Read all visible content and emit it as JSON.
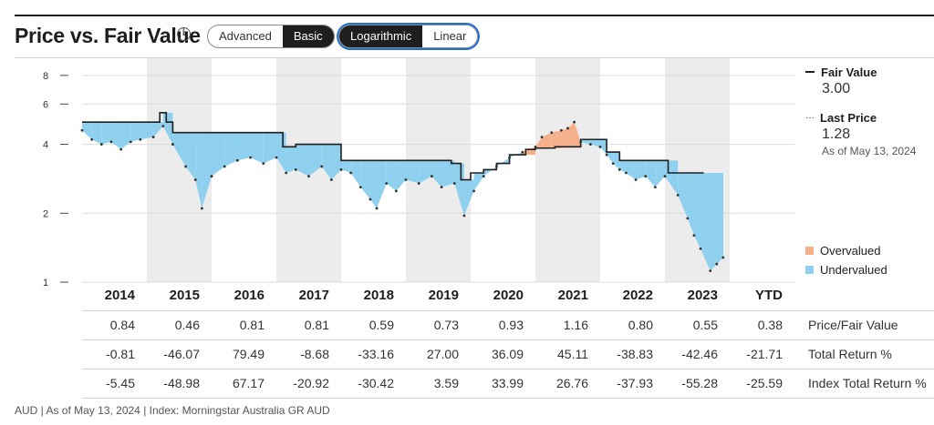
{
  "header": {
    "title": "Price vs. Fair Value",
    "mode_options": [
      "Advanced",
      "Basic"
    ],
    "mode_selected": "Basic",
    "scale_options": [
      "Logarithmic",
      "Linear"
    ],
    "scale_selected": "Logarithmic"
  },
  "legend": {
    "fair_value_label": "Fair Value",
    "fair_value": "3.00",
    "last_price_label": "Last Price",
    "last_price": "1.28",
    "as_of": "As of May 13, 2024",
    "overvalued": "Overvalued",
    "undervalued": "Undervalued",
    "colors": {
      "overvalued": "#f4b08a",
      "undervalued": "#8fd0ee",
      "fair_value_line": "#1e1e1e",
      "price_dots": "#333333"
    }
  },
  "chart_data": {
    "type": "area",
    "scale": "log",
    "y_ticks": [
      1,
      2,
      4,
      6,
      8
    ],
    "ylim": [
      1,
      9
    ],
    "categories": [
      "2014",
      "2015",
      "2016",
      "2017",
      "2018",
      "2019",
      "2020",
      "2021",
      "2022",
      "2023",
      "YTD"
    ],
    "fair_value_steps": [
      {
        "x": 2014.0,
        "v": 5.0
      },
      {
        "x": 2015.2,
        "v": 5.5
      },
      {
        "x": 2015.3,
        "v": 5.0
      },
      {
        "x": 2015.4,
        "v": 4.5
      },
      {
        "x": 2017.1,
        "v": 3.9
      },
      {
        "x": 2017.3,
        "v": 4.0
      },
      {
        "x": 2018.0,
        "v": 3.4
      },
      {
        "x": 2019.7,
        "v": 3.3
      },
      {
        "x": 2019.85,
        "v": 2.8
      },
      {
        "x": 2020.0,
        "v": 3.0
      },
      {
        "x": 2020.2,
        "v": 3.1
      },
      {
        "x": 2020.4,
        "v": 3.3
      },
      {
        "x": 2020.6,
        "v": 3.6
      },
      {
        "x": 2020.85,
        "v": 3.8
      },
      {
        "x": 2021.0,
        "v": 3.85
      },
      {
        "x": 2021.3,
        "v": 3.9
      },
      {
        "x": 2021.7,
        "v": 4.2
      },
      {
        "x": 2022.1,
        "v": 3.7
      },
      {
        "x": 2022.3,
        "v": 3.4
      },
      {
        "x": 2023.05,
        "v": 3.0
      },
      {
        "x": 2023.6,
        "v": 3.0
      }
    ],
    "price": [
      {
        "x": 2014.0,
        "v": 4.6
      },
      {
        "x": 2014.15,
        "v": 4.2
      },
      {
        "x": 2014.3,
        "v": 4.0
      },
      {
        "x": 2014.45,
        "v": 4.1
      },
      {
        "x": 2014.6,
        "v": 3.8
      },
      {
        "x": 2014.75,
        "v": 4.1
      },
      {
        "x": 2014.9,
        "v": 4.2
      },
      {
        "x": 2015.1,
        "v": 4.3
      },
      {
        "x": 2015.25,
        "v": 4.8
      },
      {
        "x": 2015.4,
        "v": 4.0
      },
      {
        "x": 2015.6,
        "v": 3.2
      },
      {
        "x": 2015.75,
        "v": 2.8
      },
      {
        "x": 2015.85,
        "v": 2.1
      },
      {
        "x": 2016.0,
        "v": 2.9
      },
      {
        "x": 2016.2,
        "v": 3.2
      },
      {
        "x": 2016.4,
        "v": 3.4
      },
      {
        "x": 2016.6,
        "v": 3.5
      },
      {
        "x": 2016.8,
        "v": 3.3
      },
      {
        "x": 2017.0,
        "v": 3.5
      },
      {
        "x": 2017.15,
        "v": 3.0
      },
      {
        "x": 2017.3,
        "v": 3.1
      },
      {
        "x": 2017.5,
        "v": 2.9
      },
      {
        "x": 2017.7,
        "v": 3.2
      },
      {
        "x": 2017.85,
        "v": 2.8
      },
      {
        "x": 2018.0,
        "v": 3.1
      },
      {
        "x": 2018.15,
        "v": 3.0
      },
      {
        "x": 2018.3,
        "v": 2.6
      },
      {
        "x": 2018.45,
        "v": 2.3
      },
      {
        "x": 2018.55,
        "v": 2.1
      },
      {
        "x": 2018.7,
        "v": 2.7
      },
      {
        "x": 2018.85,
        "v": 2.5
      },
      {
        "x": 2019.0,
        "v": 2.8
      },
      {
        "x": 2019.2,
        "v": 2.7
      },
      {
        "x": 2019.4,
        "v": 2.9
      },
      {
        "x": 2019.55,
        "v": 2.6
      },
      {
        "x": 2019.75,
        "v": 2.7
      },
      {
        "x": 2019.9,
        "v": 1.95
      },
      {
        "x": 2020.05,
        "v": 2.5
      },
      {
        "x": 2020.2,
        "v": 2.9
      },
      {
        "x": 2020.4,
        "v": 3.2
      },
      {
        "x": 2020.6,
        "v": 3.5
      },
      {
        "x": 2020.8,
        "v": 3.7
      },
      {
        "x": 2021.0,
        "v": 3.9
      },
      {
        "x": 2021.1,
        "v": 4.3
      },
      {
        "x": 2021.25,
        "v": 4.5
      },
      {
        "x": 2021.4,
        "v": 4.6
      },
      {
        "x": 2021.5,
        "v": 4.7
      },
      {
        "x": 2021.6,
        "v": 5.0
      },
      {
        "x": 2021.7,
        "v": 4.1
      },
      {
        "x": 2021.85,
        "v": 4.0
      },
      {
        "x": 2022.0,
        "v": 3.9
      },
      {
        "x": 2022.1,
        "v": 3.6
      },
      {
        "x": 2022.2,
        "v": 3.3
      },
      {
        "x": 2022.3,
        "v": 3.1
      },
      {
        "x": 2022.4,
        "v": 3.0
      },
      {
        "x": 2022.55,
        "v": 2.8
      },
      {
        "x": 2022.7,
        "v": 2.9
      },
      {
        "x": 2022.85,
        "v": 2.6
      },
      {
        "x": 2023.0,
        "v": 2.9
      },
      {
        "x": 2023.2,
        "v": 2.4
      },
      {
        "x": 2023.35,
        "v": 1.9
      },
      {
        "x": 2023.45,
        "v": 1.6
      },
      {
        "x": 2023.55,
        "v": 1.4
      },
      {
        "x": 2023.7,
        "v": 1.12
      },
      {
        "x": 2023.8,
        "v": 1.2
      },
      {
        "x": 2023.9,
        "v": 1.28
      }
    ]
  },
  "table": {
    "rows": [
      {
        "label": "Price/Fair Value",
        "values": [
          "0.84",
          "0.46",
          "0.81",
          "0.81",
          "0.59",
          "0.73",
          "0.93",
          "1.16",
          "0.80",
          "0.55",
          "0.38"
        ]
      },
      {
        "label": "Total Return %",
        "values": [
          "-0.81",
          "-46.07",
          "79.49",
          "-8.68",
          "-33.16",
          "27.00",
          "36.09",
          "45.11",
          "-38.83",
          "-42.46",
          "-21.71"
        ]
      },
      {
        "label": "Index Total Return %",
        "values": [
          "-5.45",
          "-48.98",
          "67.17",
          "-20.92",
          "-30.42",
          "3.59",
          "33.99",
          "26.76",
          "-37.93",
          "-55.28",
          "-25.59"
        ]
      }
    ]
  },
  "footer": "AUD | As of May 13, 2024 | Index: Morningstar Australia GR AUD"
}
